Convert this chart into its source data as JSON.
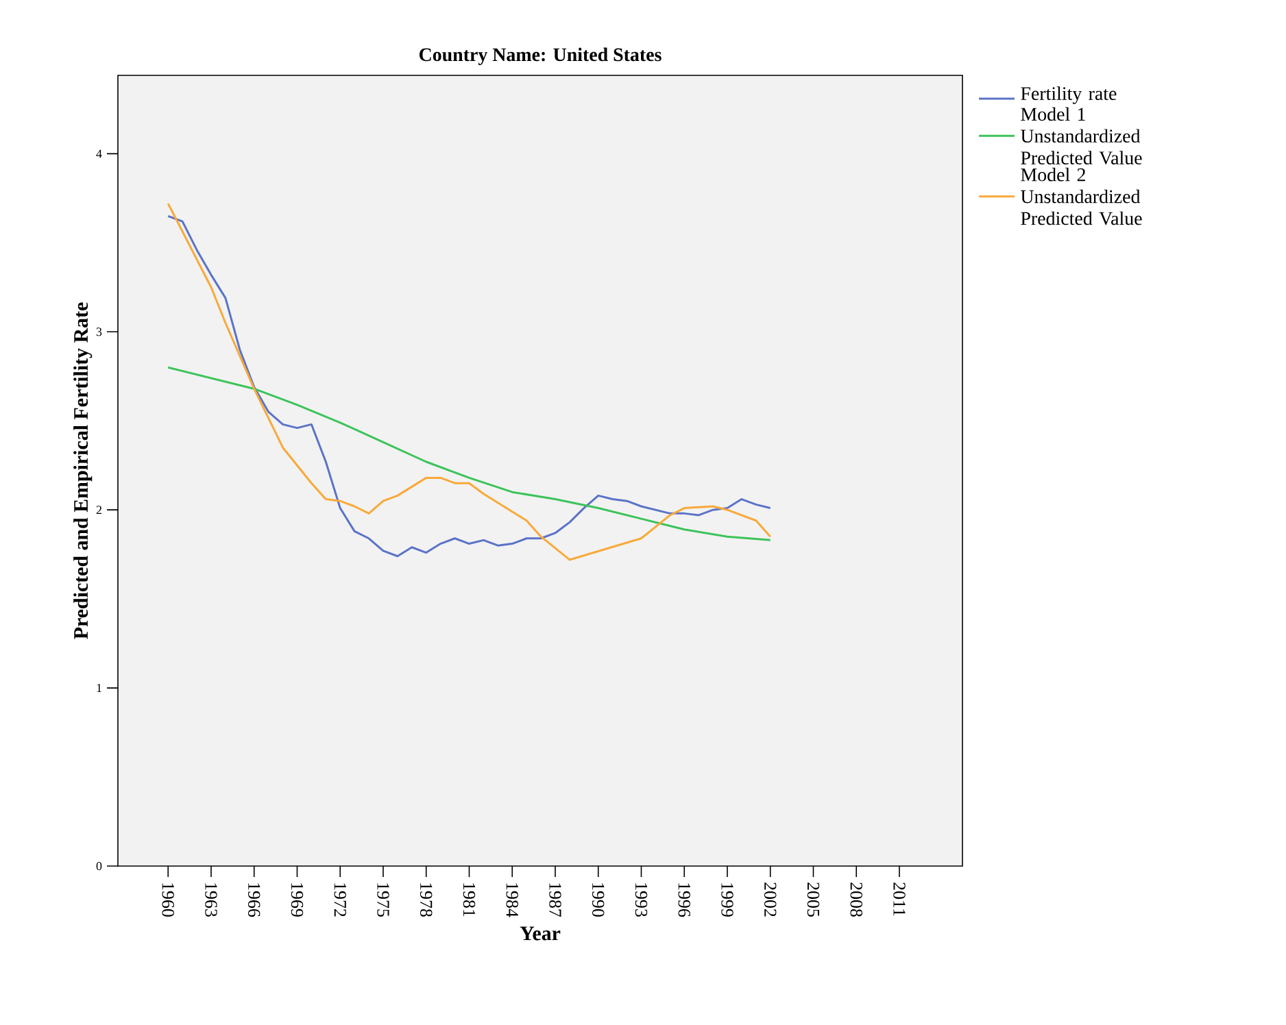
{
  "chart_data": {
    "type": "line",
    "title": "Country Name: United States",
    "xlabel": "Year",
    "ylabel": "Predicted and Empirical Fertility Rate",
    "xlim": [
      1956.5,
      2015.4
    ],
    "ylim": [
      0,
      4.44
    ],
    "xticks": [
      1960,
      1963,
      1966,
      1969,
      1972,
      1975,
      1978,
      1981,
      1984,
      1987,
      1990,
      1993,
      1996,
      1999,
      2002,
      2005,
      2008,
      2011
    ],
    "yticks": [
      0,
      1,
      2,
      3,
      4
    ],
    "grid": false,
    "legend": "top right",
    "marker": "none",
    "line_style": "solid",
    "series": [
      {
        "name": "Fertility rate",
        "color": "#5b73c7",
        "x": [
          1960,
          1961,
          1962,
          1963,
          1964,
          1965,
          1966,
          1967,
          1968,
          1969,
          1970,
          1971,
          1972,
          1973,
          1974,
          1975,
          1976,
          1977,
          1978,
          1979,
          1980,
          1981,
          1982,
          1983,
          1984,
          1985,
          1986,
          1987,
          1988,
          1989,
          1990,
          1991,
          1992,
          1993,
          1994,
          1995,
          1996,
          1997,
          1998,
          1999,
          2000,
          2001,
          2002
        ],
        "values": [
          3.65,
          3.62,
          3.46,
          3.32,
          3.19,
          2.9,
          2.69,
          2.55,
          2.48,
          2.46,
          2.48,
          2.27,
          2.01,
          1.88,
          1.84,
          1.77,
          1.74,
          1.79,
          1.76,
          1.81,
          1.84,
          1.81,
          1.83,
          1.8,
          1.81,
          1.84,
          1.84,
          1.87,
          1.93,
          2.01,
          2.08,
          2.06,
          2.05,
          2.02,
          2.0,
          1.98,
          1.98,
          1.97,
          2.0,
          2.01,
          2.06,
          2.03,
          2.01
        ]
      },
      {
        "name": "Model 1 Unstandardized Predicted Value",
        "color": "#3cc35a",
        "x": [
          1960,
          1963,
          1966,
          1969,
          1972,
          1975,
          1978,
          1981,
          1984,
          1987,
          1990,
          1993,
          1996,
          1999,
          2002
        ],
        "values": [
          2.8,
          2.74,
          2.68,
          2.59,
          2.49,
          2.38,
          2.27,
          2.18,
          2.1,
          2.06,
          2.01,
          1.95,
          1.89,
          1.85,
          1.83
        ]
      },
      {
        "name": "Model 2 Unstandardized Predicted Value",
        "color": "#f9a93a",
        "x": [
          1960,
          1963,
          1964,
          1966,
          1968,
          1969,
          1970,
          1971,
          1972,
          1973,
          1974,
          1975,
          1976,
          1977,
          1978,
          1979,
          1980,
          1981,
          1982,
          1985,
          1986,
          1988,
          1993,
          1995,
          1996,
          1998,
          1999,
          2001,
          2002
        ],
        "values": [
          3.72,
          3.25,
          3.05,
          2.68,
          2.35,
          2.25,
          2.15,
          2.06,
          2.05,
          2.02,
          1.98,
          2.05,
          2.08,
          2.13,
          2.18,
          2.18,
          2.15,
          2.15,
          2.09,
          1.94,
          1.85,
          1.72,
          1.84,
          1.97,
          2.01,
          2.02,
          2.0,
          1.94,
          1.85
        ]
      }
    ]
  }
}
